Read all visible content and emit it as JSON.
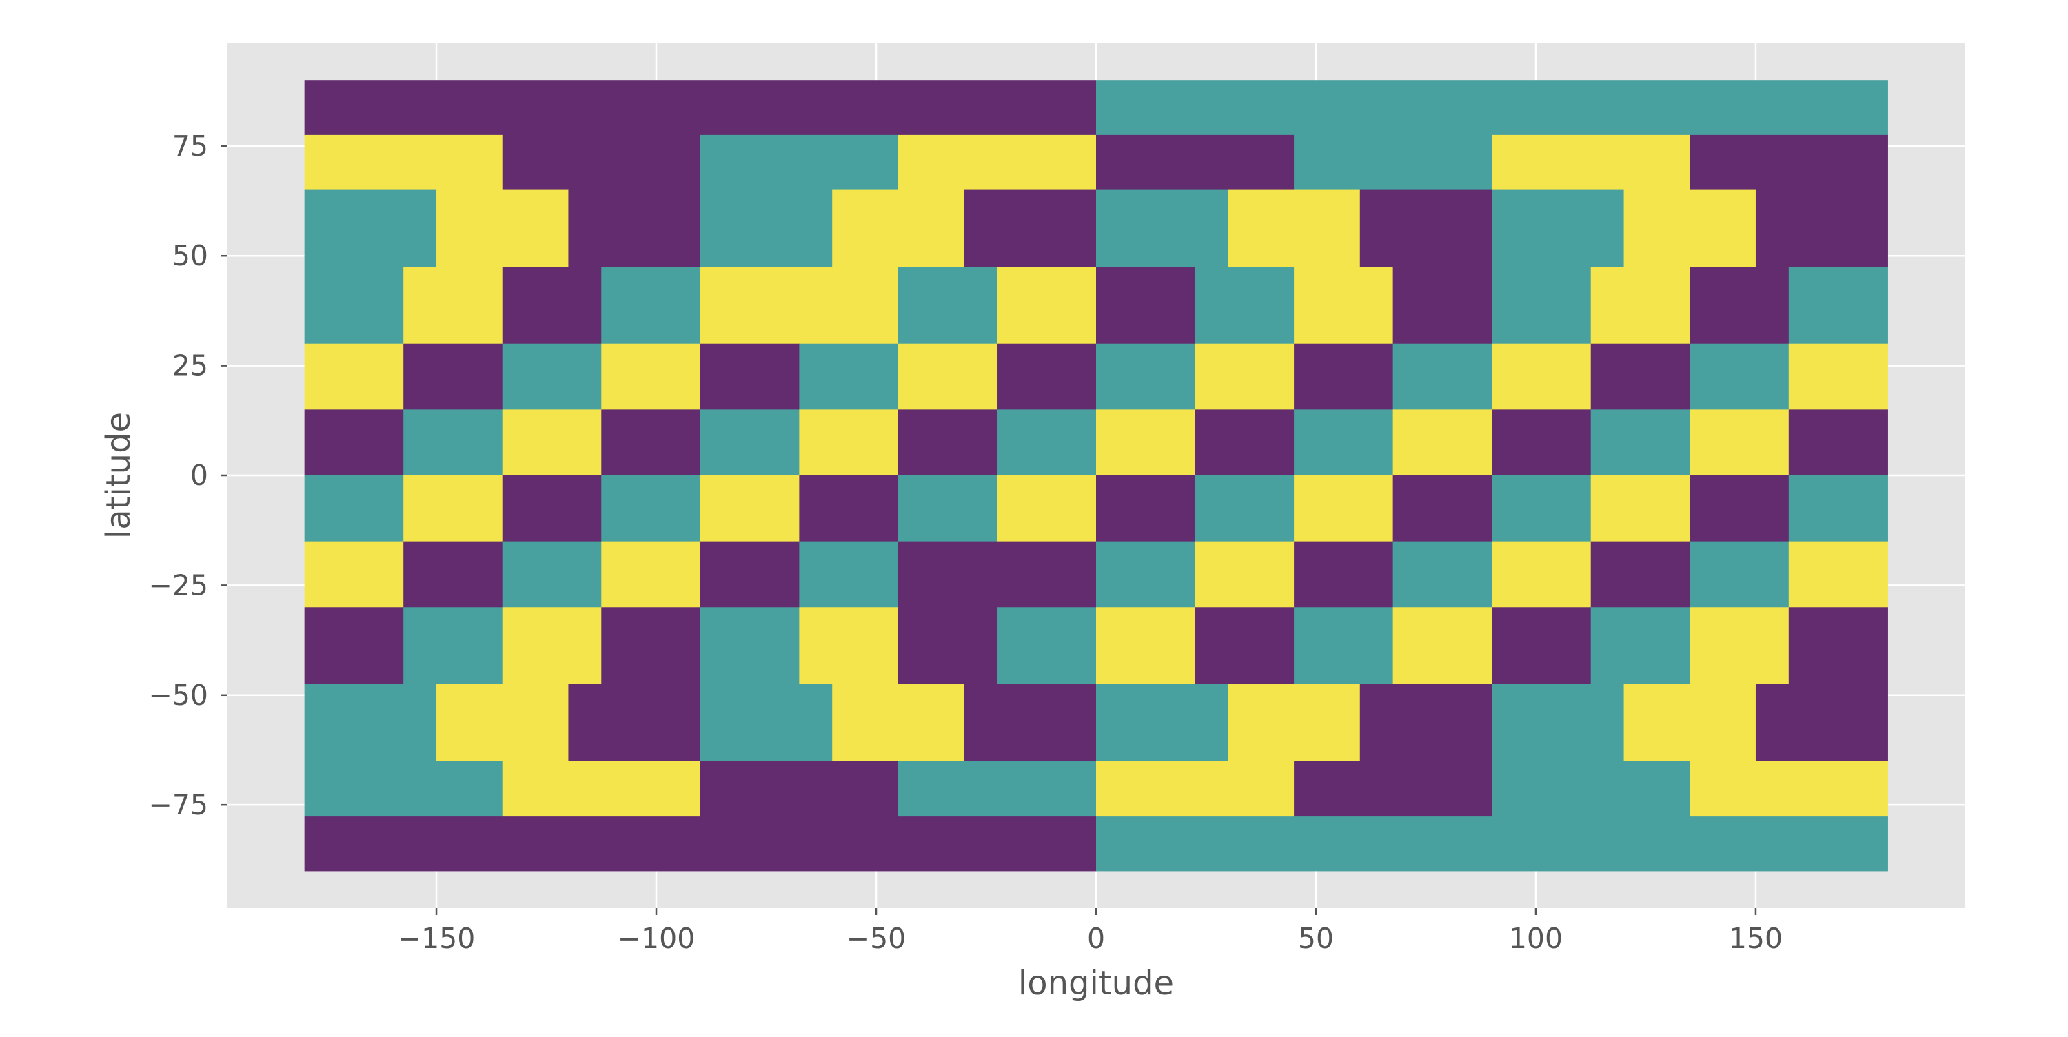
{
  "chart_data": {
    "type": "heatmap",
    "title": "",
    "xlabel": "longitude",
    "ylabel": "latitude",
    "xlim": [
      -197.5,
      197.5
    ],
    "ylim": [
      -98.5,
      98.5
    ],
    "xticks": [
      -150,
      -100,
      -50,
      0,
      50,
      100,
      150
    ],
    "yticks": [
      -75,
      -50,
      -25,
      0,
      25,
      50,
      75
    ],
    "xtick_labels": [
      "−150",
      "−100",
      "−50",
      "0",
      "50",
      "100",
      "150"
    ],
    "ytick_labels": [
      "−75",
      "−50",
      "−25",
      "0",
      "25",
      "50",
      "75"
    ],
    "grid": true,
    "background": "#e5e5e5",
    "colors": {
      "0": "#632c6e",
      "1": "#48a19f",
      "2": "#f5e54c"
    },
    "category_values": [
      0,
      1,
      2
    ],
    "bands": [
      {
        "lat": [
          77.5,
          90
        ],
        "edges": [
          -180,
          0,
          180
        ],
        "values": [
          0,
          1
        ]
      },
      {
        "lat": [
          65,
          77.5
        ],
        "edges": [
          -180,
          -135,
          -90,
          -45,
          0,
          45,
          90,
          135,
          180
        ],
        "values": [
          2,
          0,
          1,
          2,
          0,
          1,
          2,
          0
        ]
      },
      {
        "lat": [
          47.5,
          65
        ],
        "edges": [
          -180,
          -150,
          -120,
          -90,
          -60,
          -30,
          0,
          30,
          60,
          90,
          120,
          150,
          180
        ],
        "values": [
          1,
          2,
          0,
          1,
          2,
          0,
          1,
          2,
          0,
          1,
          2,
          0
        ]
      },
      {
        "lat": [
          30,
          47.5
        ],
        "edges": [
          -180,
          -157.5,
          -135,
          -112.5,
          -90,
          -67.5,
          -45,
          -22.5,
          0,
          22.5,
          45,
          67.5,
          90,
          112.5,
          135,
          157.5,
          180
        ],
        "values": [
          1,
          2,
          0,
          1,
          2,
          2,
          1,
          2,
          0,
          1,
          2,
          0,
          1,
          2,
          0,
          1
        ]
      },
      {
        "lat": [
          15,
          30
        ],
        "edges": [
          -180,
          -157.5,
          -135,
          -112.5,
          -90,
          -67.5,
          -45,
          -22.5,
          0,
          22.5,
          45,
          67.5,
          90,
          112.5,
          135,
          157.5,
          180
        ],
        "values": [
          2,
          0,
          1,
          2,
          0,
          1,
          2,
          0,
          1,
          2,
          0,
          1,
          2,
          0,
          1,
          2
        ]
      },
      {
        "lat": [
          0,
          15
        ],
        "edges": [
          -180,
          -157.5,
          -135,
          -112.5,
          -90,
          -67.5,
          -45,
          -22.5,
          0,
          22.5,
          45,
          67.5,
          90,
          112.5,
          135,
          157.5,
          180
        ],
        "values": [
          0,
          1,
          2,
          0,
          1,
          2,
          0,
          1,
          2,
          0,
          1,
          2,
          0,
          1,
          2,
          0
        ]
      },
      {
        "lat": [
          -15,
          0
        ],
        "edges": [
          -180,
          -157.5,
          -135,
          -112.5,
          -90,
          -67.5,
          -45,
          -22.5,
          0,
          22.5,
          45,
          67.5,
          90,
          112.5,
          135,
          157.5,
          180
        ],
        "values": [
          1,
          2,
          0,
          1,
          2,
          0,
          1,
          2,
          0,
          1,
          2,
          0,
          1,
          2,
          0,
          1
        ]
      },
      {
        "lat": [
          -30,
          -15
        ],
        "edges": [
          -180,
          -157.5,
          -135,
          -112.5,
          -90,
          -67.5,
          -45,
          -22.5,
          0,
          22.5,
          45,
          67.5,
          90,
          112.5,
          135,
          157.5,
          180
        ],
        "values": [
          2,
          0,
          1,
          2,
          0,
          1,
          0,
          0,
          1,
          2,
          0,
          1,
          2,
          0,
          1,
          2
        ]
      },
      {
        "lat": [
          -47.5,
          -30
        ],
        "edges": [
          -180,
          -157.5,
          -135,
          -112.5,
          -90,
          -67.5,
          -45,
          -22.5,
          0,
          22.5,
          45,
          67.5,
          90,
          112.5,
          135,
          157.5,
          180
        ],
        "values": [
          0,
          1,
          2,
          0,
          1,
          2,
          0,
          1,
          2,
          0,
          1,
          2,
          0,
          1,
          2,
          0
        ]
      },
      {
        "lat": [
          -65,
          -47.5
        ],
        "edges": [
          -180,
          -150,
          -120,
          -90,
          -60,
          -30,
          0,
          30,
          60,
          90,
          120,
          150,
          180
        ],
        "values": [
          1,
          2,
          0,
          1,
          2,
          0,
          1,
          2,
          0,
          1,
          2,
          0
        ]
      },
      {
        "lat": [
          -77.5,
          -65
        ],
        "edges": [
          -180,
          -135,
          -90,
          -45,
          0,
          45,
          90,
          135,
          180
        ],
        "values": [
          1,
          2,
          0,
          1,
          2,
          0,
          1,
          2
        ]
      },
      {
        "lat": [
          -90,
          -77.5
        ],
        "edges": [
          -180,
          0,
          180
        ],
        "values": [
          0,
          1
        ]
      }
    ]
  }
}
